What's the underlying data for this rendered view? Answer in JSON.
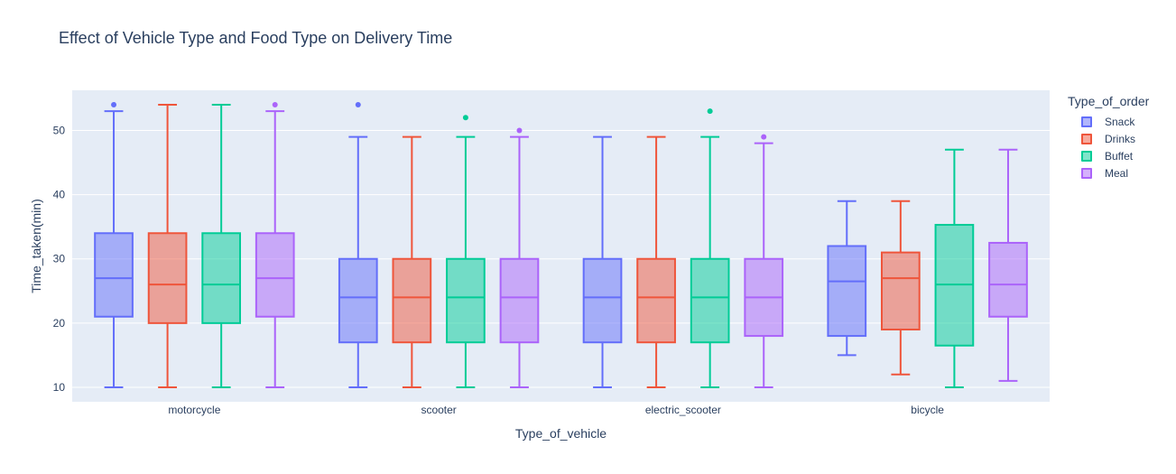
{
  "chart_data": {
    "type": "box",
    "title": "Effect of Vehicle Type and Food Type on Delivery Time",
    "xlabel": "Type_of_vehicle",
    "ylabel": "Time_taken(min)",
    "legend_title": "Type_of_order",
    "legend_position": "right",
    "ylim": [
      7.75,
      56.25
    ],
    "y_ticks": [
      10,
      20,
      30,
      40,
      50
    ],
    "grid": true,
    "categories": [
      "motorcycle",
      "scooter",
      "electric_scooter",
      "bicycle"
    ],
    "series": [
      {
        "name": "Snack",
        "color": "#636efa",
        "boxes": [
          {
            "min": 10,
            "q1": 21,
            "median": 27,
            "q3": 34,
            "max": 53,
            "outliers": [
              54
            ]
          },
          {
            "min": 10,
            "q1": 17,
            "median": 24,
            "q3": 30,
            "max": 49,
            "outliers": [
              54
            ]
          },
          {
            "min": 10,
            "q1": 17,
            "median": 24,
            "q3": 30,
            "max": 49,
            "outliers": []
          },
          {
            "min": 15,
            "q1": 18,
            "median": 26.5,
            "q3": 32,
            "max": 39,
            "outliers": []
          }
        ]
      },
      {
        "name": "Drinks",
        "color": "#ef553b",
        "boxes": [
          {
            "min": 10,
            "q1": 20,
            "median": 26,
            "q3": 34,
            "max": 54,
            "outliers": []
          },
          {
            "min": 10,
            "q1": 17,
            "median": 24,
            "q3": 30,
            "max": 49,
            "outliers": []
          },
          {
            "min": 10,
            "q1": 17,
            "median": 24,
            "q3": 30,
            "max": 49,
            "outliers": []
          },
          {
            "min": 12,
            "q1": 19,
            "median": 27,
            "q3": 31,
            "max": 39,
            "outliers": []
          }
        ]
      },
      {
        "name": "Buffet",
        "color": "#00cc96",
        "boxes": [
          {
            "min": 10,
            "q1": 20,
            "median": 26,
            "q3": 34,
            "max": 54,
            "outliers": []
          },
          {
            "min": 10,
            "q1": 17,
            "median": 24,
            "q3": 30,
            "max": 49,
            "outliers": [
              52
            ]
          },
          {
            "min": 10,
            "q1": 17,
            "median": 24,
            "q3": 30,
            "max": 49,
            "outliers": [
              53
            ]
          },
          {
            "min": 10,
            "q1": 16.5,
            "median": 26,
            "q3": 35.3,
            "max": 47,
            "outliers": []
          }
        ]
      },
      {
        "name": "Meal",
        "color": "#ab63fa",
        "boxes": [
          {
            "min": 10,
            "q1": 21,
            "median": 27,
            "q3": 34,
            "max": 53,
            "outliers": [
              54
            ]
          },
          {
            "min": 10,
            "q1": 17,
            "median": 24,
            "q3": 30,
            "max": 49,
            "outliers": [
              50
            ]
          },
          {
            "min": 10,
            "q1": 18,
            "median": 24,
            "q3": 30,
            "max": 48,
            "outliers": [
              49
            ]
          },
          {
            "min": 11,
            "q1": 21,
            "median": 26,
            "q3": 32.5,
            "max": 47,
            "outliers": []
          }
        ]
      }
    ]
  },
  "colors": {
    "plot_background": "#e5ecf6",
    "grid": "#ffffff",
    "text": "#2a3f5f"
  }
}
